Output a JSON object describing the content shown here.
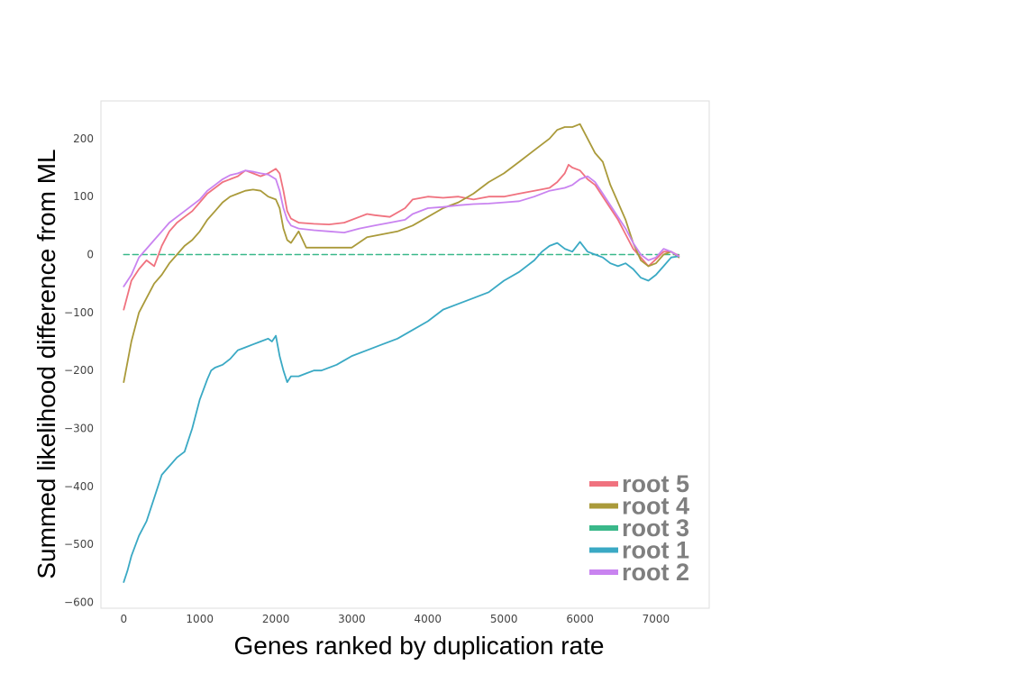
{
  "chart_data": {
    "type": "line",
    "title": "",
    "xlabel": "Genes ranked by duplication rate",
    "ylabel": "Summed likelihood difference from ML",
    "xlim": [
      -300,
      7700
    ],
    "ylim": [
      -610,
      265
    ],
    "xticks": [
      0,
      1000,
      2000,
      3000,
      4000,
      5000,
      6000,
      7000
    ],
    "yticks": [
      200,
      100,
      0,
      -100,
      -200,
      -300,
      -400,
      -500,
      -600
    ],
    "grid": false,
    "legend_position": "lower-right",
    "legend_order": [
      "root 5",
      "root 4",
      "root 3",
      "root 1",
      "root 2"
    ],
    "series": [
      {
        "name": "root 5",
        "color": "#f0727f",
        "dashed": false,
        "x": [
          0,
          100,
          200,
          300,
          400,
          500,
          600,
          700,
          800,
          900,
          1000,
          1100,
          1200,
          1300,
          1400,
          1500,
          1600,
          1700,
          1800,
          1900,
          2000,
          2050,
          2100,
          2150,
          2200,
          2300,
          2500,
          2700,
          2900,
          3100,
          3200,
          3300,
          3500,
          3700,
          3800,
          4000,
          4200,
          4400,
          4600,
          4800,
          5000,
          5200,
          5400,
          5600,
          5700,
          5800,
          5850,
          5900,
          6000,
          6100,
          6200,
          6300,
          6400,
          6500,
          6600,
          6700,
          6800,
          6900,
          7000,
          7100,
          7200,
          7300
        ],
        "y": [
          -95,
          -45,
          -25,
          -10,
          -20,
          15,
          40,
          55,
          65,
          75,
          90,
          105,
          115,
          125,
          130,
          135,
          145,
          140,
          135,
          140,
          148,
          140,
          110,
          75,
          62,
          55,
          53,
          52,
          55,
          65,
          70,
          68,
          65,
          80,
          95,
          100,
          98,
          100,
          95,
          100,
          100,
          105,
          110,
          115,
          125,
          140,
          155,
          150,
          145,
          130,
          120,
          100,
          80,
          60,
          35,
          10,
          -5,
          -20,
          -8,
          5,
          5,
          -2
        ]
      },
      {
        "name": "root 4",
        "color": "#aa9a3a",
        "dashed": false,
        "x": [
          0,
          100,
          200,
          300,
          400,
          500,
          600,
          700,
          800,
          900,
          1000,
          1100,
          1200,
          1300,
          1400,
          1500,
          1600,
          1700,
          1800,
          1900,
          2000,
          2050,
          2100,
          2150,
          2200,
          2300,
          2400,
          2600,
          2800,
          3000,
          3200,
          3400,
          3600,
          3800,
          4000,
          4200,
          4400,
          4600,
          4800,
          5000,
          5200,
          5400,
          5600,
          5700,
          5800,
          5900,
          6000,
          6100,
          6200,
          6300,
          6400,
          6500,
          6600,
          6700,
          6800,
          6900,
          7000,
          7100,
          7200,
          7300
        ],
        "y": [
          -220,
          -150,
          -100,
          -75,
          -50,
          -35,
          -15,
          0,
          15,
          25,
          40,
          60,
          75,
          90,
          100,
          105,
          110,
          112,
          110,
          100,
          95,
          80,
          45,
          25,
          20,
          40,
          12,
          12,
          12,
          12,
          30,
          35,
          40,
          50,
          65,
          80,
          90,
          105,
          125,
          140,
          160,
          180,
          200,
          215,
          220,
          220,
          225,
          200,
          175,
          160,
          120,
          90,
          60,
          20,
          -10,
          -20,
          -15,
          0,
          5,
          -5
        ]
      },
      {
        "name": "root 3",
        "color": "#3ab88a",
        "dashed": true,
        "x": [
          0,
          7300
        ],
        "y": [
          0,
          0
        ]
      },
      {
        "name": "root 1",
        "color": "#3aa9c4",
        "dashed": false,
        "x": [
          0,
          50,
          100,
          200,
          300,
          400,
          500,
          600,
          700,
          800,
          900,
          1000,
          1100,
          1150,
          1200,
          1300,
          1400,
          1500,
          1600,
          1700,
          1800,
          1900,
          1950,
          2000,
          2050,
          2100,
          2150,
          2200,
          2300,
          2400,
          2500,
          2600,
          2800,
          3000,
          3200,
          3400,
          3600,
          3800,
          4000,
          4200,
          4400,
          4600,
          4800,
          5000,
          5200,
          5400,
          5500,
          5600,
          5700,
          5800,
          5900,
          6000,
          6100,
          6200,
          6300,
          6400,
          6500,
          6600,
          6700,
          6800,
          6900,
          7000,
          7100,
          7200,
          7300
        ],
        "y": [
          -565,
          -545,
          -520,
          -485,
          -460,
          -420,
          -380,
          -365,
          -350,
          -340,
          -300,
          -250,
          -215,
          -200,
          -195,
          -190,
          -180,
          -165,
          -160,
          -155,
          -150,
          -145,
          -150,
          -140,
          -175,
          -200,
          -220,
          -210,
          -210,
          -205,
          -200,
          -200,
          -190,
          -175,
          -165,
          -155,
          -145,
          -130,
          -115,
          -95,
          -85,
          -75,
          -65,
          -45,
          -30,
          -10,
          5,
          15,
          20,
          10,
          5,
          22,
          5,
          0,
          -5,
          -15,
          -20,
          -15,
          -25,
          -40,
          -45,
          -35,
          -20,
          -5,
          -3
        ]
      },
      {
        "name": "root 2",
        "color": "#c983f0",
        "dashed": false,
        "x": [
          0,
          100,
          200,
          300,
          400,
          500,
          600,
          700,
          800,
          900,
          1000,
          1100,
          1200,
          1300,
          1400,
          1500,
          1600,
          1700,
          1800,
          1900,
          2000,
          2050,
          2100,
          2150,
          2200,
          2300,
          2500,
          2700,
          2900,
          3100,
          3300,
          3500,
          3700,
          3800,
          4000,
          4200,
          4400,
          4600,
          4800,
          5000,
          5200,
          5400,
          5600,
          5800,
          5900,
          6000,
          6100,
          6200,
          6300,
          6400,
          6500,
          6600,
          6700,
          6800,
          6900,
          7000,
          7100,
          7200,
          7300
        ],
        "y": [
          -55,
          -35,
          -5,
          10,
          25,
          40,
          55,
          65,
          75,
          85,
          95,
          110,
          120,
          130,
          137,
          140,
          145,
          143,
          140,
          138,
          130,
          110,
          80,
          60,
          50,
          45,
          42,
          40,
          38,
          45,
          50,
          55,
          60,
          70,
          80,
          82,
          85,
          87,
          88,
          90,
          92,
          100,
          110,
          115,
          120,
          130,
          135,
          125,
          105,
          85,
          65,
          45,
          20,
          0,
          -10,
          -5,
          10,
          5,
          -3
        ]
      }
    ]
  }
}
